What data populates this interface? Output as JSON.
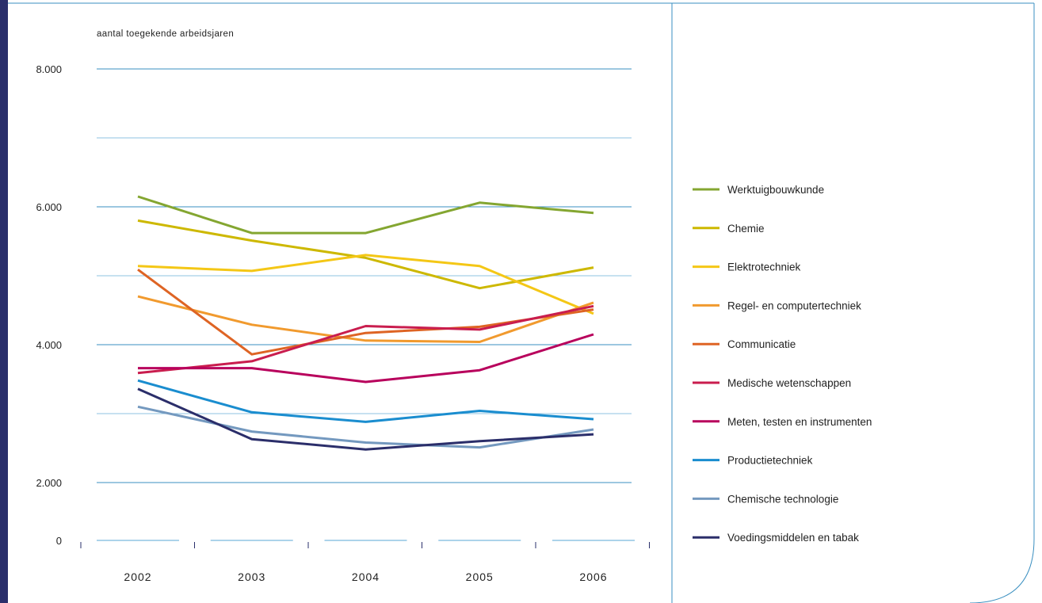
{
  "chart_data": {
    "type": "line",
    "ylabel": "aantal toegekende arbeidsjaren",
    "x": [
      "2002",
      "2003",
      "2004",
      "2005",
      "2006"
    ],
    "ylim": [
      0,
      8000
    ],
    "yticks": [
      0,
      2000,
      4000,
      6000,
      8000
    ],
    "ytick_labels": [
      "0",
      "2.000",
      "4.000",
      "6.000",
      "8.000"
    ],
    "grid": true,
    "legend_position": "right",
    "series": [
      {
        "name": "Werktuigbouwkunde",
        "color": "#84a631",
        "values": [
          6150,
          5620,
          5620,
          6060,
          5910
        ]
      },
      {
        "name": "Chemie",
        "color": "#cdb800",
        "values": [
          5800,
          5510,
          5260,
          4820,
          5120
        ]
      },
      {
        "name": "Elektrotechniek",
        "color": "#f4c716",
        "values": [
          5140,
          5070,
          5300,
          5140,
          4450
        ]
      },
      {
        "name": "Regel- en computertechniek",
        "color": "#f19a2e",
        "values": [
          4700,
          4290,
          4060,
          4040,
          4610
        ]
      },
      {
        "name": "Communicatie",
        "color": "#de6424",
        "values": [
          5090,
          3860,
          4170,
          4260,
          4510
        ]
      },
      {
        "name": "Medische wetenschappen",
        "color": "#c91d4e",
        "values": [
          3590,
          3760,
          4270,
          4220,
          4560
        ]
      },
      {
        "name": "Meten, testen en instrumenten",
        "color": "#b8005c",
        "values": [
          3660,
          3660,
          3460,
          3630,
          4150
        ]
      },
      {
        "name": "Productietechniek",
        "color": "#1a8dcf",
        "values": [
          3480,
          3020,
          2880,
          3040,
          2920
        ]
      },
      {
        "name": "Chemische technologie",
        "color": "#7499bf",
        "values": [
          3100,
          2740,
          2580,
          2510,
          2770
        ]
      },
      {
        "name": "Voedingsmiddelen en tabak",
        "color": "#2b2e6a",
        "values": [
          3360,
          2630,
          2480,
          2600,
          2700
        ]
      }
    ]
  }
}
